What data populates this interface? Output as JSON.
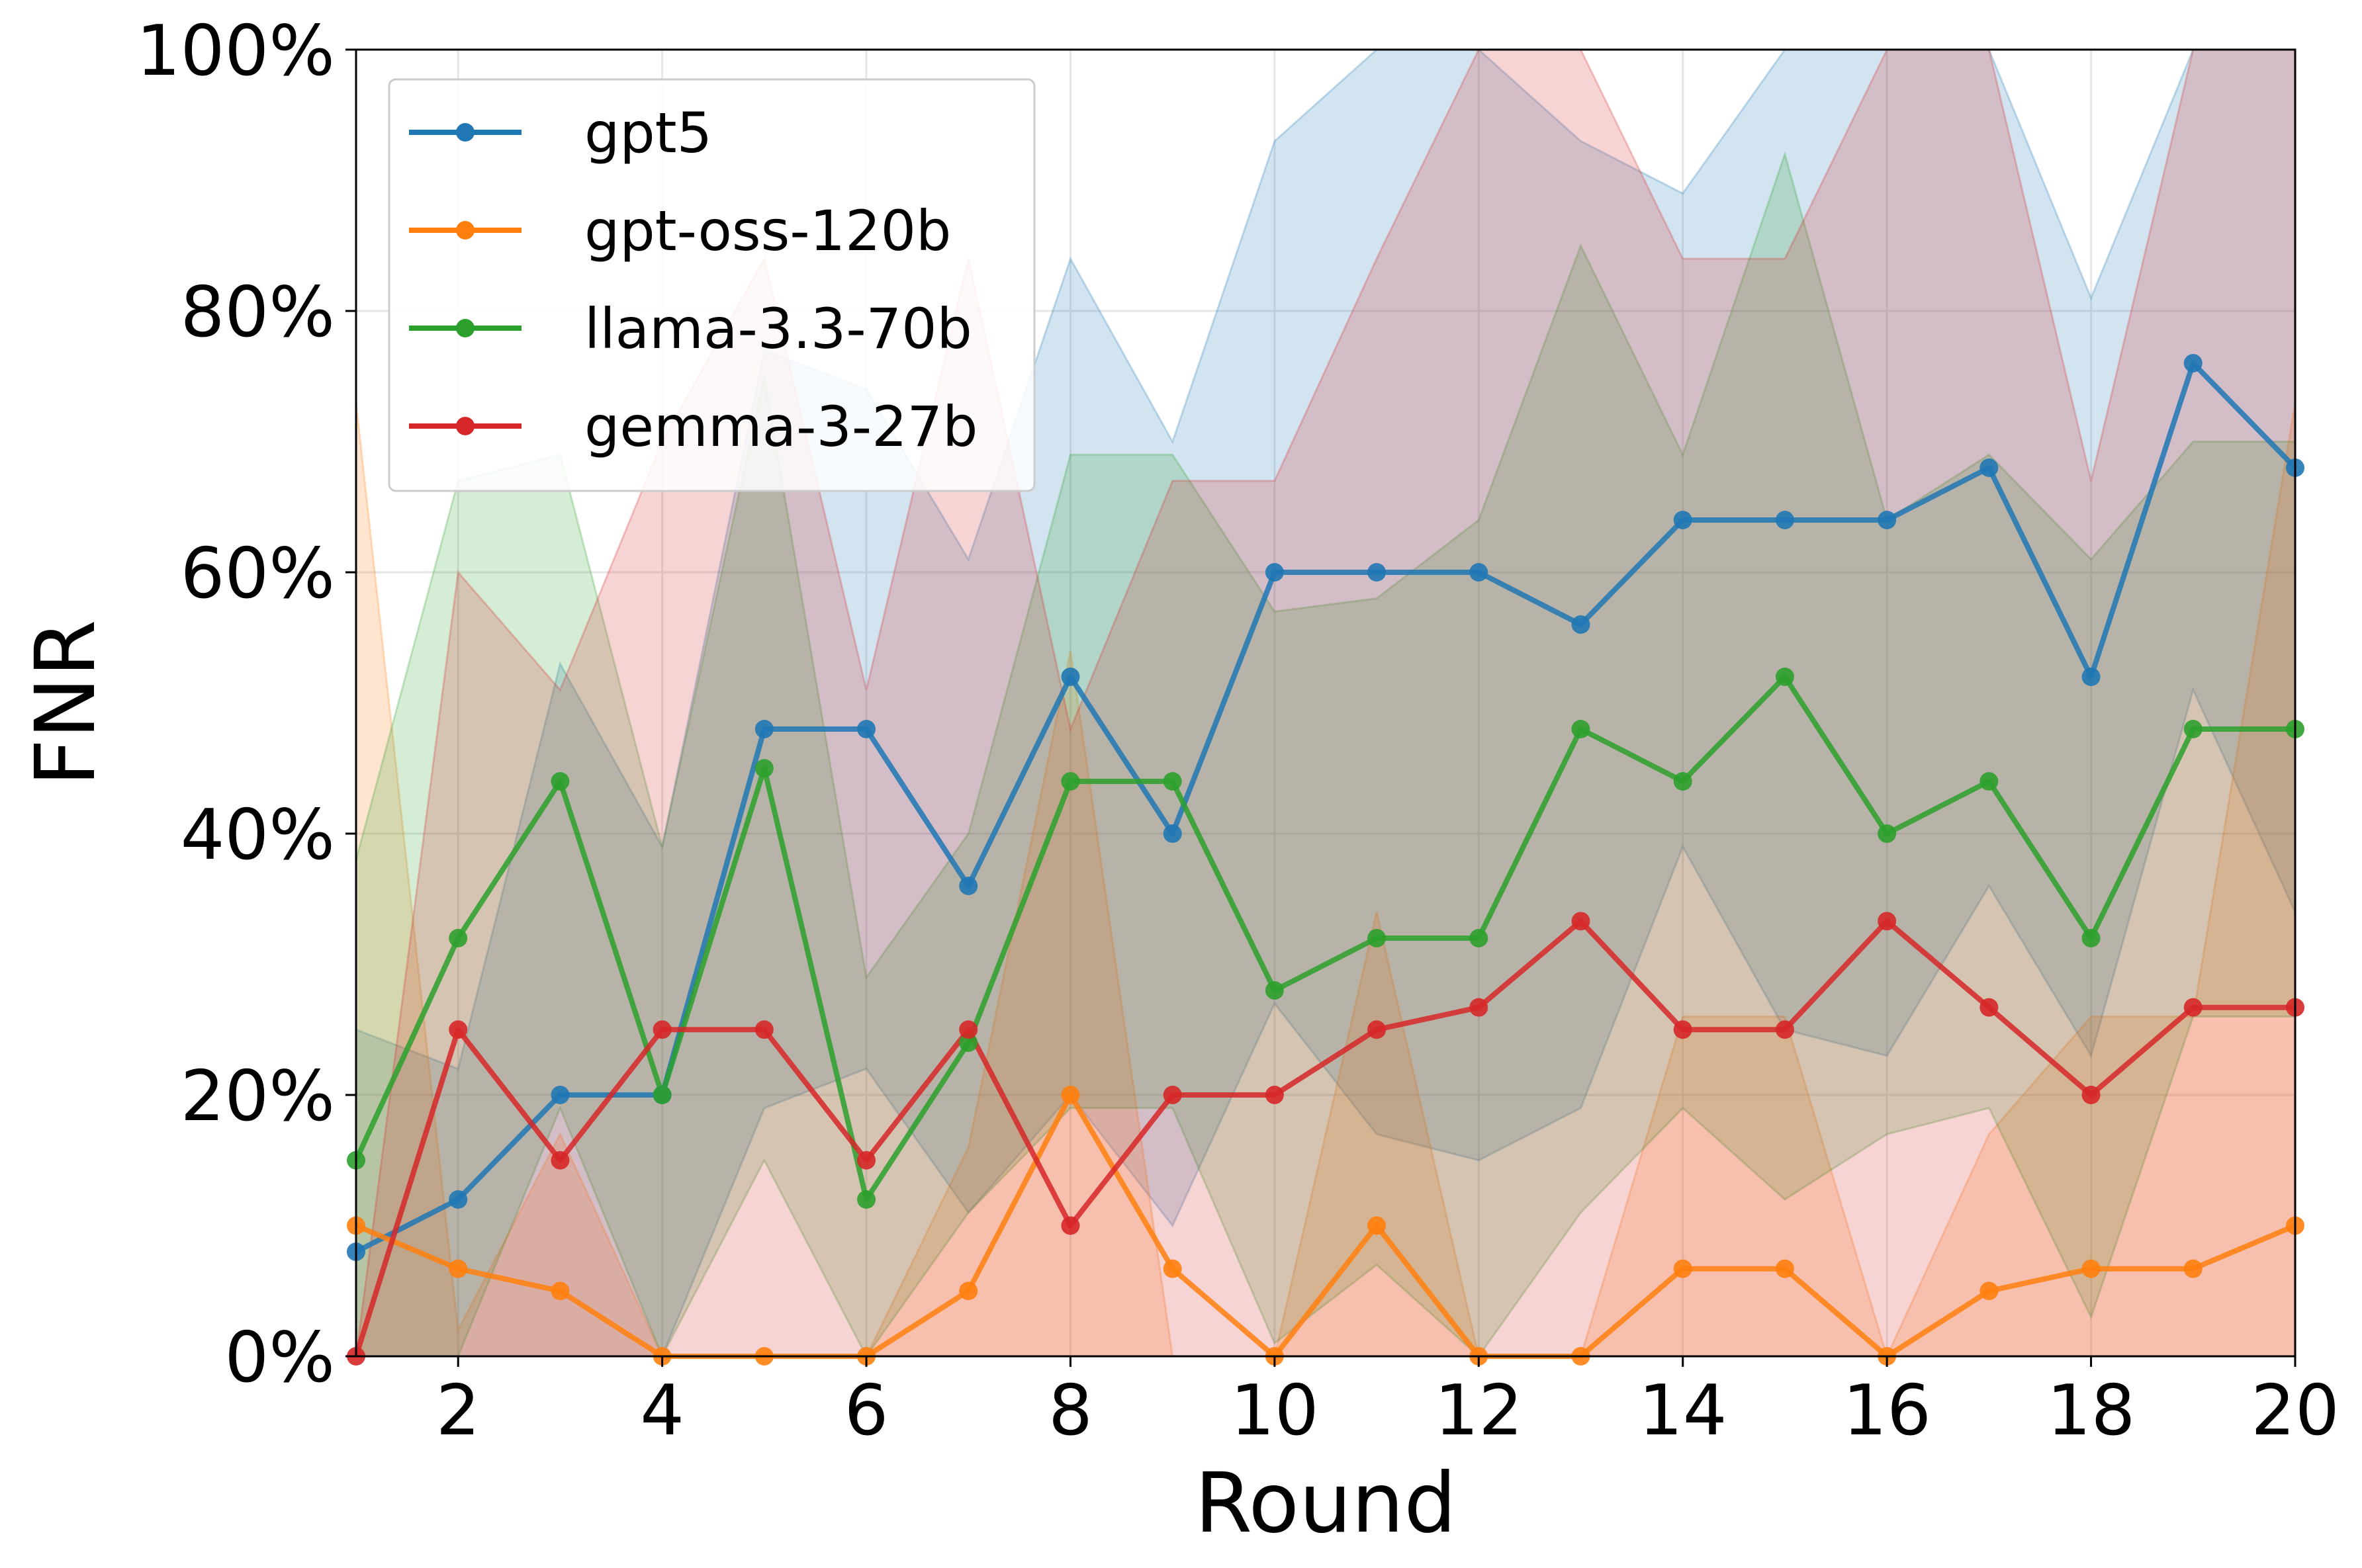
{
  "chart_data": {
    "type": "line",
    "title": "",
    "xlabel": "Round",
    "ylabel": "FNR",
    "xlim": [
      1,
      20
    ],
    "ylim": [
      0,
      100
    ],
    "xticks": [
      2,
      4,
      6,
      8,
      10,
      12,
      14,
      16,
      18,
      20
    ],
    "yticks": [
      0,
      20,
      40,
      60,
      80,
      100
    ],
    "ytick_suffix": "%",
    "grid": true,
    "legend_position": "top-left",
    "x": [
      1,
      2,
      3,
      4,
      5,
      6,
      7,
      8,
      9,
      10,
      11,
      12,
      13,
      14,
      15,
      16,
      17,
      18,
      19,
      20
    ],
    "series": [
      {
        "name": "gpt5",
        "color": "#1f77b4",
        "values": [
          8,
          12,
          20,
          20,
          48,
          48,
          36,
          52,
          40,
          60,
          60,
          60,
          56,
          64,
          64,
          64,
          68,
          52,
          76,
          68
        ],
        "band_lower": [
          0,
          0,
          0,
          0,
          19,
          22,
          11,
          20,
          10,
          27,
          17,
          15,
          19,
          39,
          25,
          23,
          36,
          23,
          51,
          34
        ],
        "band_upper": [
          25,
          22,
          53,
          39,
          77,
          74,
          61,
          84,
          70,
          93,
          100,
          100,
          93,
          89,
          100,
          100,
          100,
          81,
          100,
          100
        ]
      },
      {
        "name": "gpt-oss-120b",
        "color": "#ff7f0e",
        "values": [
          10,
          6.7,
          5,
          0,
          0,
          0,
          5,
          20,
          6.7,
          0,
          10,
          0,
          0,
          6.7,
          6.7,
          0,
          5,
          6.7,
          6.7,
          10
        ],
        "band_lower": [
          0,
          0,
          0,
          0,
          0,
          0,
          0,
          0,
          0,
          0,
          0,
          0,
          0,
          0,
          0,
          0,
          0,
          0,
          0,
          0
        ],
        "band_upper": [
          73,
          2,
          17,
          0,
          0,
          0,
          16,
          54,
          0,
          0,
          34,
          0,
          0,
          26,
          26,
          0,
          17,
          26,
          26,
          73
        ]
      },
      {
        "name": "llama-3.3-70b",
        "color": "#2ca02c",
        "values": [
          15,
          32,
          44,
          20,
          45,
          12,
          24,
          44,
          44,
          28,
          32,
          32,
          48,
          44,
          52,
          40,
          44,
          32,
          48,
          48
        ],
        "band_lower": [
          0,
          0,
          19,
          0,
          15,
          0,
          11,
          19,
          19,
          1,
          7,
          0,
          11,
          19,
          12,
          17,
          19,
          3,
          26,
          26
        ],
        "band_upper": [
          38,
          67,
          69,
          39,
          75,
          29,
          40,
          69,
          69,
          57,
          58,
          64,
          85,
          69,
          92,
          64,
          69,
          61,
          70,
          70
        ]
      },
      {
        "name": "gemma-3-27b",
        "color": "#d62728",
        "values": [
          0,
          25,
          15,
          25,
          25,
          15,
          25,
          10,
          20,
          20,
          25,
          26.7,
          33.3,
          25,
          25,
          33.3,
          26.7,
          20,
          26.7,
          26.7
        ],
        "band_lower": [
          0,
          0,
          0,
          0,
          0,
          0,
          0,
          0,
          0,
          0,
          0,
          0,
          0,
          0,
          0,
          0,
          0,
          0,
          0,
          0
        ],
        "band_upper": [
          0,
          60,
          51,
          70,
          84,
          51,
          84,
          48,
          67,
          67,
          84,
          100,
          100,
          84,
          84,
          100,
          100,
          67,
          100,
          100
        ]
      }
    ]
  }
}
